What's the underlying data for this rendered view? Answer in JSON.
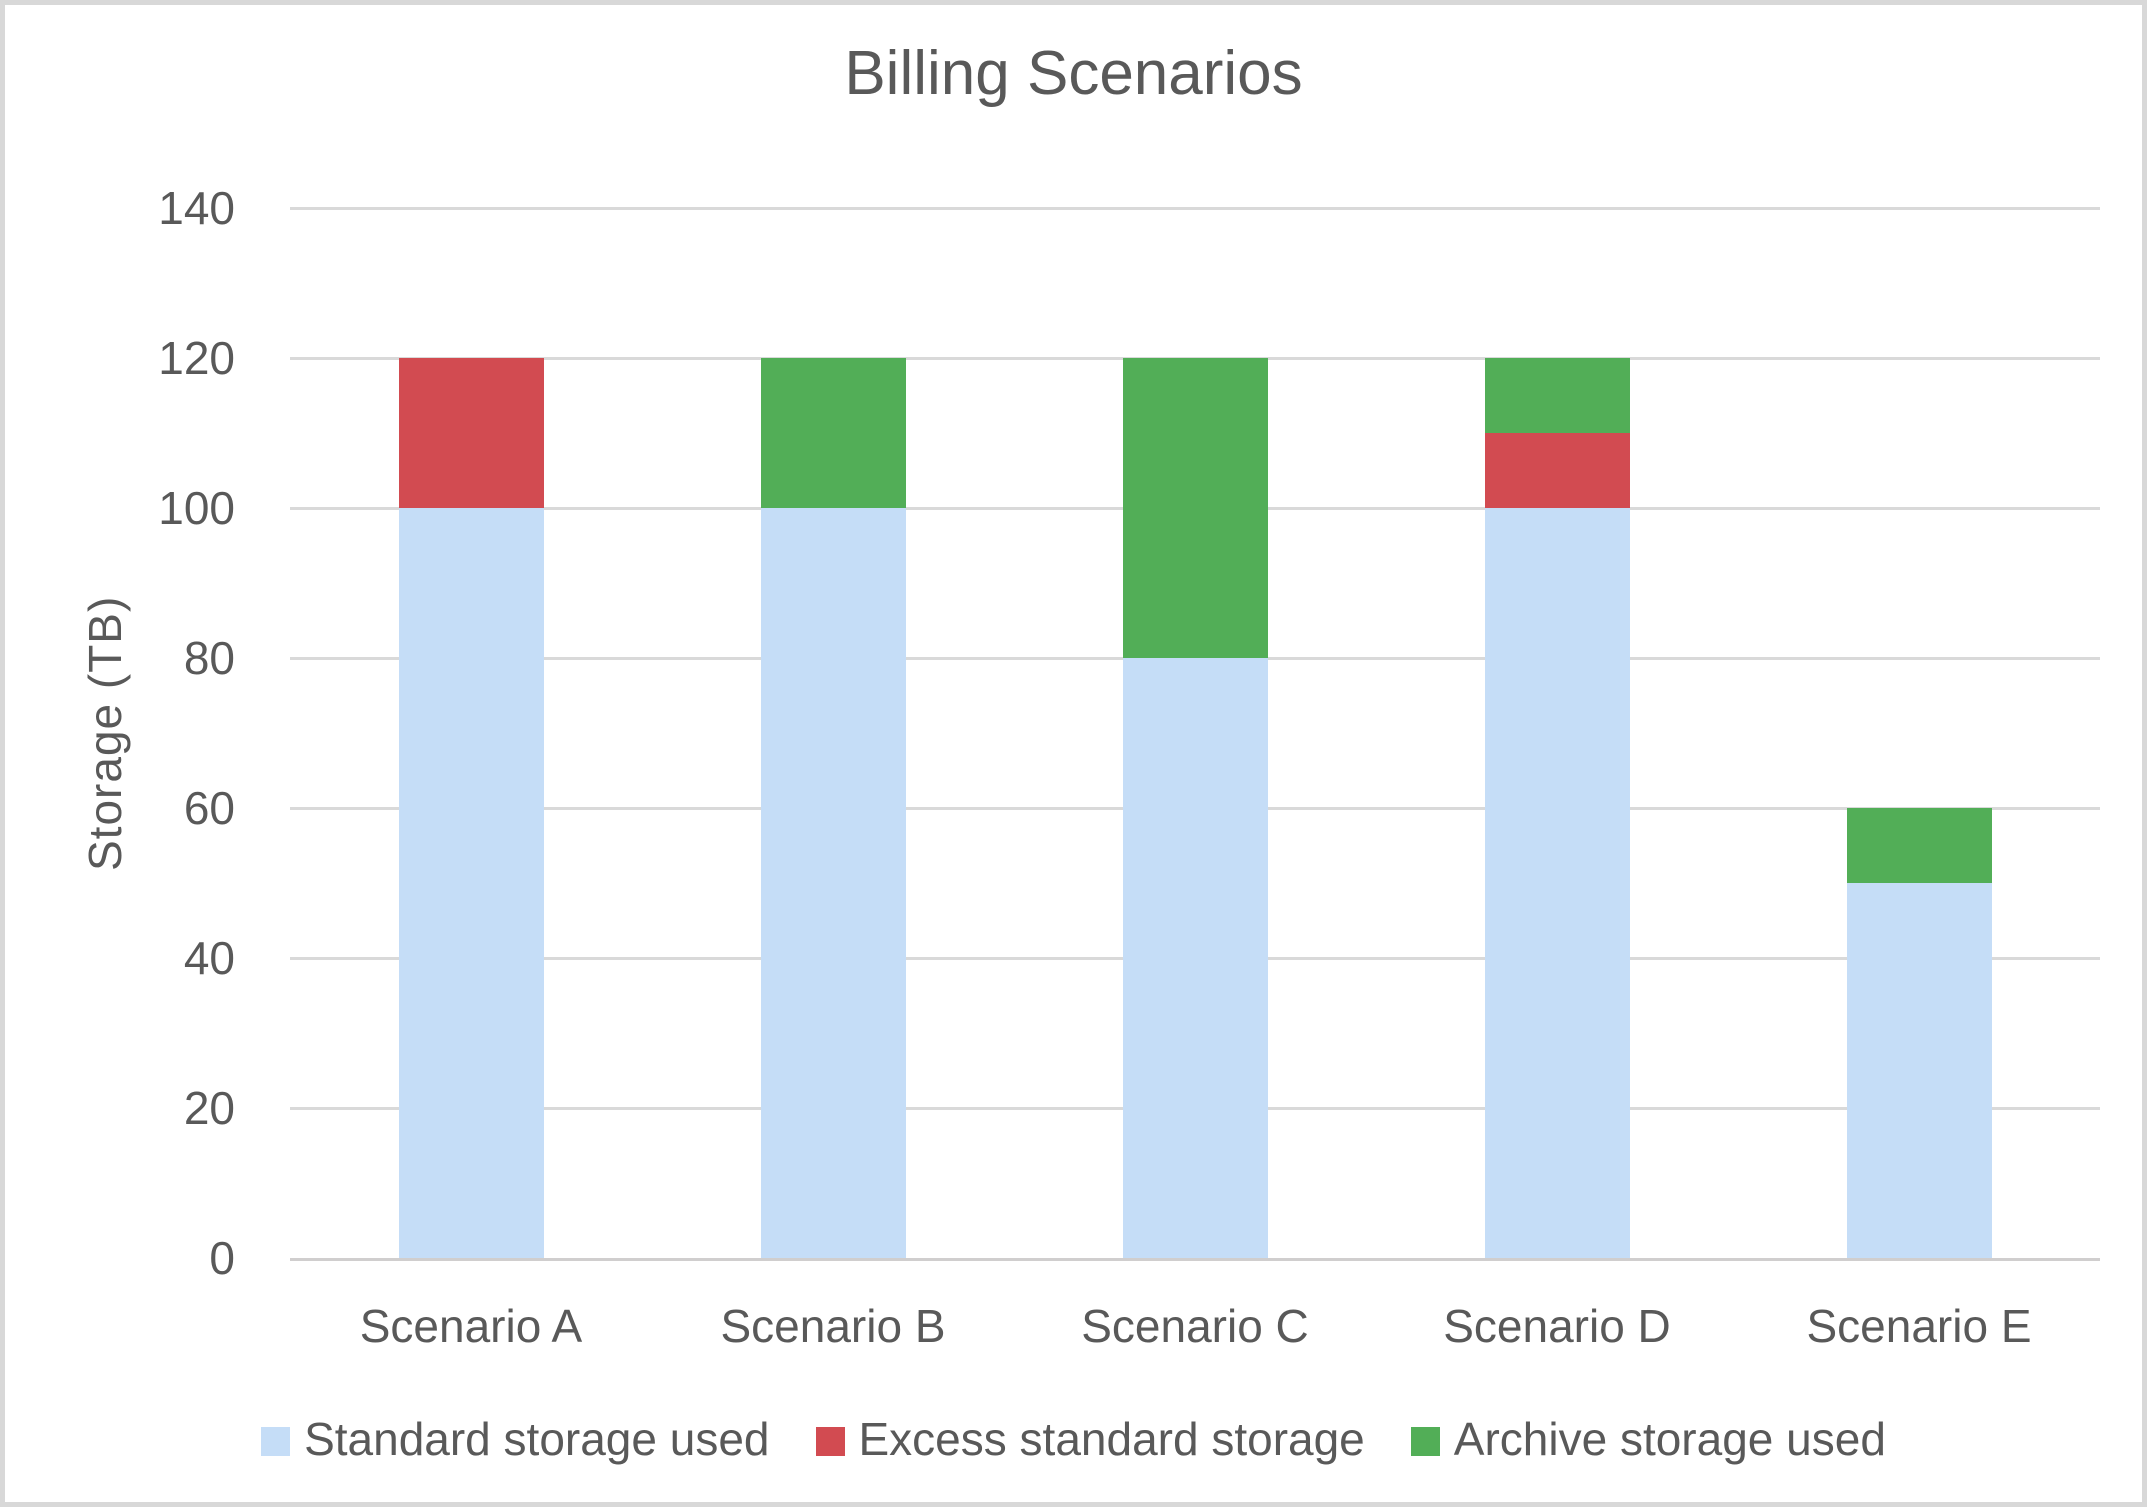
{
  "chart_data": {
    "type": "bar",
    "stacked": true,
    "title": "Billing Scenarios",
    "ylabel": "Storage (TB)",
    "xlabel": "",
    "ylim": [
      0,
      140
    ],
    "ytick_step": 20,
    "grid": true,
    "legend_position": "bottom",
    "categories": [
      "Scenario A",
      "Scenario B",
      "Scenario C",
      "Scenario D",
      "Scenario E"
    ],
    "series": [
      {
        "name": "Standard storage used",
        "color": "#C5DDF7",
        "values": [
          100,
          100,
          80,
          100,
          50
        ]
      },
      {
        "name": "Excess standard storage",
        "color": "#D24B51",
        "values": [
          20,
          0,
          0,
          10,
          0
        ]
      },
      {
        "name": "Archive storage used",
        "color": "#52AE57",
        "values": [
          0,
          20,
          40,
          10,
          10
        ]
      }
    ]
  },
  "colors": {
    "text": "#595959",
    "gridline": "#D9D9D9",
    "axis_line": "#D0CECE",
    "canvas_border": "#D8D8D8",
    "background": "#FFFFFF"
  }
}
